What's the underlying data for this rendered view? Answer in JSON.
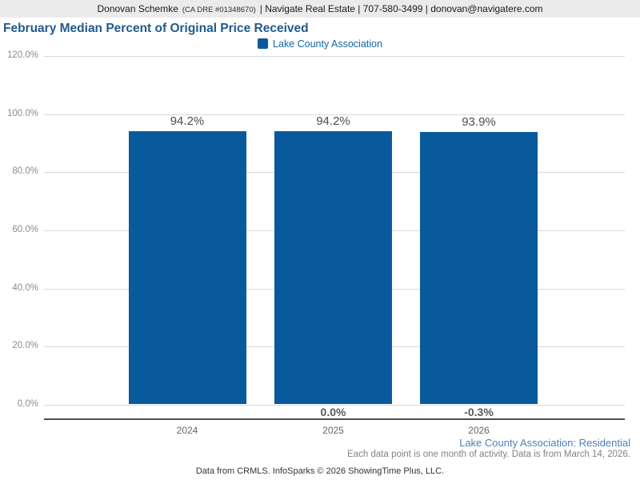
{
  "header": {
    "agent_name": "Donovan Schemke",
    "agent_license": "(CA DRE #01348670)",
    "contact_info": "| Navigate Real Estate | 707-580-3499 | donovan@navigatere.com"
  },
  "chart_title": "February Median Percent of Original Price Received",
  "legend": {
    "label": "Lake County Association"
  },
  "chart_data": {
    "type": "bar",
    "title": "February Median Percent of Original Price Received",
    "categories": [
      "2024",
      "2025",
      "2026"
    ],
    "series": [
      {
        "name": "Lake County Association",
        "values": [
          94.2,
          94.2,
          93.9
        ]
      }
    ],
    "value_labels": [
      "94.2%",
      "94.2%",
      "93.9%"
    ],
    "change_labels": [
      "",
      "0.0%",
      "-0.3%"
    ],
    "xlabel": "",
    "ylabel": "",
    "ylim": [
      0,
      120
    ],
    "ytick_values": [
      120,
      100,
      80,
      60,
      40,
      20,
      0
    ],
    "ytick_labels": [
      "120.0%",
      "100.0%",
      "80.0%",
      "60.0%",
      "40.0%",
      "20.0%",
      "0.0%"
    ],
    "grid": "horizontal",
    "legend_position": "top-center",
    "bar_color": "#095a9d"
  },
  "footnotes": {
    "scope": "Lake County Association: Residential",
    "data_note": "Each data point is one month of activity. Data is from March 14, 2026.",
    "attribution": "Data from CRMLS. InfoSparks © 2026 ShowingTime Plus, LLC."
  },
  "colors": {
    "header_bg": "#ebebeb",
    "title_text": "#23598f",
    "legend_text": "#1166a6",
    "bar": "#095a9d",
    "scope_text": "#4d7fb5",
    "gridline": "#d9d9d9"
  }
}
